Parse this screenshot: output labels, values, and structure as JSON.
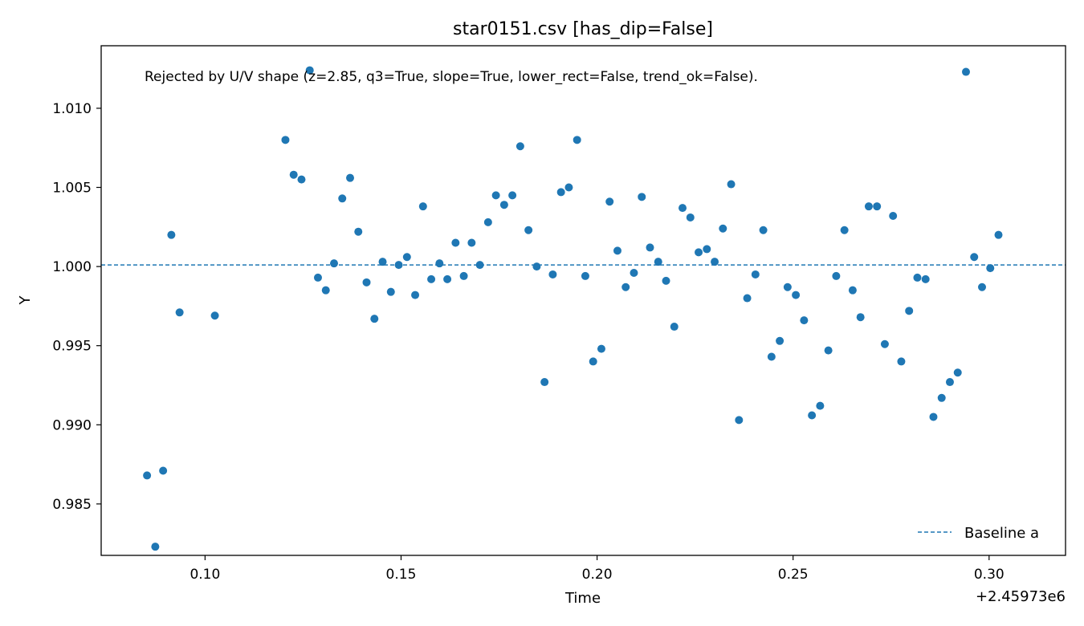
{
  "chart_data": {
    "type": "scatter",
    "title": "star0151.csv [has_dip=False]",
    "xlabel": "Time",
    "ylabel": "Y",
    "x_offset_label": "+2.45973e6",
    "xlim": [
      0.0735,
      0.3195
    ],
    "ylim": [
      0.98175,
      1.01395
    ],
    "xticks": [
      0.1,
      0.15,
      0.2,
      0.25,
      0.3
    ],
    "xtick_labels": [
      "0.10",
      "0.15",
      "0.20",
      "0.25",
      "0.30"
    ],
    "yticks": [
      0.985,
      0.99,
      0.995,
      1.0,
      1.005,
      1.01
    ],
    "ytick_labels": [
      "0.985",
      "0.990",
      "0.995",
      "1.000",
      "1.005",
      "1.010"
    ],
    "grid": false,
    "annotation": "Rejected by U/V shape (z=2.85, q3=True, slope=True, lower_rect=False, trend_ok=False).",
    "legend": {
      "placement": "bottom-right",
      "entries": [
        {
          "label": "Baseline a",
          "style": "dashed-line",
          "color": "#1f77b4"
        }
      ]
    },
    "baseline": {
      "y": 1.0001,
      "color": "#1f77b4",
      "style": "dashed"
    },
    "series": [
      {
        "color": "#1f77b4",
        "points": [
          [
            0.0852,
            0.9868
          ],
          [
            0.0873,
            0.9823
          ],
          [
            0.0893,
            0.9871
          ],
          [
            0.0914,
            1.002
          ],
          [
            0.0935,
            0.9971
          ],
          [
            0.1025,
            0.9969
          ],
          [
            0.1205,
            1.008
          ],
          [
            0.1226,
            1.0058
          ],
          [
            0.1246,
            1.0055
          ],
          [
            0.1267,
            1.0124
          ],
          [
            0.1288,
            0.9993
          ],
          [
            0.1308,
            0.9985
          ],
          [
            0.1329,
            1.0002
          ],
          [
            0.135,
            1.0043
          ],
          [
            0.137,
            1.0056
          ],
          [
            0.1391,
            1.0022
          ],
          [
            0.1412,
            0.999
          ],
          [
            0.1432,
            0.9967
          ],
          [
            0.1453,
            1.0003
          ],
          [
            0.1474,
            0.9984
          ],
          [
            0.1494,
            1.0001
          ],
          [
            0.1515,
            1.0006
          ],
          [
            0.1536,
            0.9982
          ],
          [
            0.1556,
            1.0038
          ],
          [
            0.1577,
            0.9992
          ],
          [
            0.1598,
            1.0002
          ],
          [
            0.1618,
            0.9992
          ],
          [
            0.1639,
            1.0015
          ],
          [
            0.166,
            0.9994
          ],
          [
            0.168,
            1.0015
          ],
          [
            0.1701,
            1.0001
          ],
          [
            0.1722,
            1.0028
          ],
          [
            0.1742,
            1.0045
          ],
          [
            0.1763,
            1.0039
          ],
          [
            0.1784,
            1.0045
          ],
          [
            0.1804,
            1.0076
          ],
          [
            0.1825,
            1.0023
          ],
          [
            0.1846,
            1.0
          ],
          [
            0.1866,
            0.9927
          ],
          [
            0.1887,
            0.9995
          ],
          [
            0.1908,
            1.0047
          ],
          [
            0.1928,
            1.005
          ],
          [
            0.1949,
            1.008
          ],
          [
            0.197,
            0.9994
          ],
          [
            0.199,
            0.994
          ],
          [
            0.2011,
            0.9948
          ],
          [
            0.2032,
            1.0041
          ],
          [
            0.2052,
            1.001
          ],
          [
            0.2073,
            0.9987
          ],
          [
            0.2094,
            0.9996
          ],
          [
            0.2114,
            1.0044
          ],
          [
            0.2135,
            1.0012
          ],
          [
            0.2156,
            1.0003
          ],
          [
            0.2176,
            0.9991
          ],
          [
            0.2197,
            0.9962
          ],
          [
            0.2218,
            1.0037
          ],
          [
            0.2238,
            1.0031
          ],
          [
            0.2259,
            1.0009
          ],
          [
            0.228,
            1.0011
          ],
          [
            0.23,
            1.0003
          ],
          [
            0.2321,
            1.0024
          ],
          [
            0.2342,
            1.0052
          ],
          [
            0.2362,
            0.9903
          ],
          [
            0.2383,
            0.998
          ],
          [
            0.2404,
            0.9995
          ],
          [
            0.2424,
            1.0023
          ],
          [
            0.2445,
            0.9943
          ],
          [
            0.2466,
            0.9953
          ],
          [
            0.2486,
            0.9987
          ],
          [
            0.2507,
            0.9982
          ],
          [
            0.2528,
            0.9966
          ],
          [
            0.2548,
            0.9906
          ],
          [
            0.2569,
            0.9912
          ],
          [
            0.259,
            0.9947
          ],
          [
            0.261,
            0.9994
          ],
          [
            0.2631,
            1.0023
          ],
          [
            0.2652,
            0.9985
          ],
          [
            0.2672,
            0.9968
          ],
          [
            0.2693,
            1.0038
          ],
          [
            0.2714,
            1.0038
          ],
          [
            0.2734,
            0.9951
          ],
          [
            0.2755,
            1.0032
          ],
          [
            0.2776,
            0.994
          ],
          [
            0.2796,
            0.9972
          ],
          [
            0.2817,
            0.9993
          ],
          [
            0.2838,
            0.9992
          ],
          [
            0.2858,
            0.9905
          ],
          [
            0.2879,
            0.9917
          ],
          [
            0.29,
            0.9927
          ],
          [
            0.292,
            0.9933
          ],
          [
            0.2941,
            1.0123
          ],
          [
            0.2962,
            1.0006
          ],
          [
            0.2982,
            0.9987
          ],
          [
            0.3003,
            0.9999
          ],
          [
            0.3024,
            1.002
          ]
        ]
      }
    ]
  }
}
